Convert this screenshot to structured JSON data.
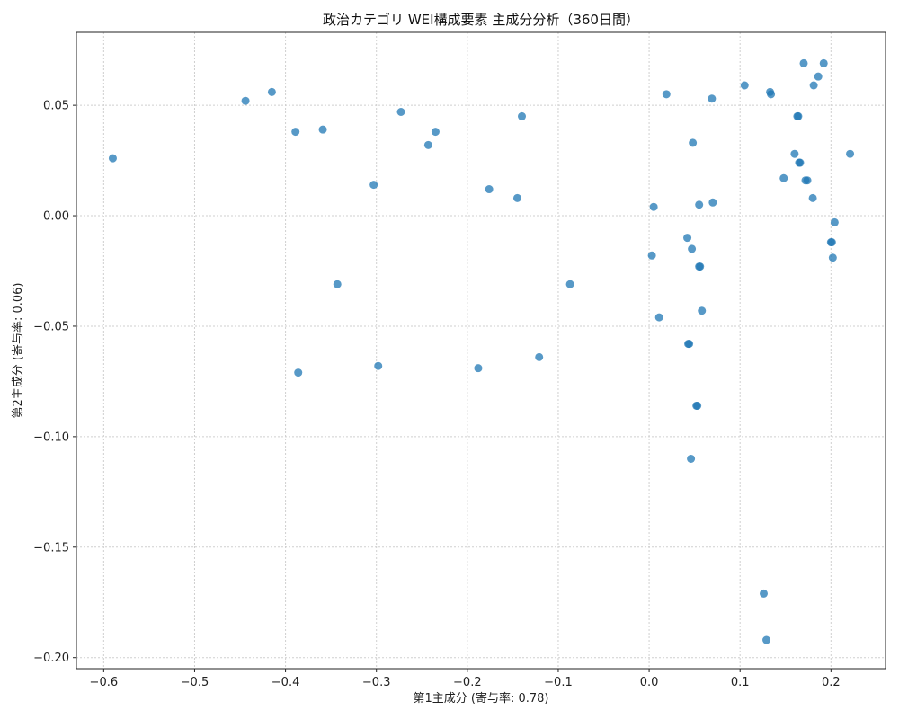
{
  "chart_data": {
    "type": "scatter",
    "title": "政治カテゴリ WEI構成要素 主成分分析（360日間）",
    "xlabel": "第1主成分 (寄与率: 0.78)",
    "ylabel": "第2主成分 (寄与率: 0.06)",
    "xlim": [
      -0.63,
      0.26
    ],
    "ylim": [
      -0.205,
      0.083
    ],
    "xticks": [
      -0.6,
      -0.5,
      -0.4,
      -0.3,
      -0.2,
      -0.1,
      0.0,
      0.1,
      0.2
    ],
    "xtick_labels": [
      "−0.6",
      "−0.5",
      "−0.4",
      "−0.3",
      "−0.2",
      "−0.1",
      "0.0",
      "0.1",
      "0.2"
    ],
    "yticks": [
      0.05,
      0.0,
      -0.05,
      -0.1,
      -0.15,
      -0.2
    ],
    "ytick_labels": [
      "0.05",
      "0.00",
      "−0.05",
      "−0.10",
      "−0.15",
      "−0.20"
    ],
    "grid": true,
    "point_color": "#1f77b4",
    "point_alpha": 0.75,
    "points": [
      {
        "x": -0.59,
        "y": 0.026
      },
      {
        "x": -0.444,
        "y": 0.052
      },
      {
        "x": -0.415,
        "y": 0.056
      },
      {
        "x": -0.389,
        "y": 0.038
      },
      {
        "x": -0.359,
        "y": 0.039
      },
      {
        "x": -0.343,
        "y": -0.031
      },
      {
        "x": -0.386,
        "y": -0.071
      },
      {
        "x": -0.303,
        "y": 0.014
      },
      {
        "x": -0.298,
        "y": -0.068
      },
      {
        "x": -0.273,
        "y": 0.047
      },
      {
        "x": -0.243,
        "y": 0.032
      },
      {
        "x": -0.235,
        "y": 0.038
      },
      {
        "x": -0.176,
        "y": 0.012
      },
      {
        "x": -0.188,
        "y": -0.069
      },
      {
        "x": -0.145,
        "y": 0.008
      },
      {
        "x": -0.14,
        "y": 0.045
      },
      {
        "x": -0.121,
        "y": -0.064
      },
      {
        "x": -0.087,
        "y": -0.031
      },
      {
        "x": 0.003,
        "y": -0.018
      },
      {
        "x": 0.005,
        "y": 0.004
      },
      {
        "x": 0.011,
        "y": -0.046
      },
      {
        "x": 0.019,
        "y": 0.055
      },
      {
        "x": 0.042,
        "y": -0.01
      },
      {
        "x": 0.044,
        "y": -0.058
      },
      {
        "x": 0.043,
        "y": -0.058
      },
      {
        "x": 0.046,
        "y": -0.11
      },
      {
        "x": 0.047,
        "y": -0.015
      },
      {
        "x": 0.048,
        "y": 0.033
      },
      {
        "x": 0.052,
        "y": -0.086
      },
      {
        "x": 0.053,
        "y": -0.086
      },
      {
        "x": 0.055,
        "y": 0.005
      },
      {
        "x": 0.055,
        "y": -0.023
      },
      {
        "x": 0.056,
        "y": -0.023
      },
      {
        "x": 0.058,
        "y": -0.043
      },
      {
        "x": 0.069,
        "y": 0.053
      },
      {
        "x": 0.07,
        "y": 0.006
      },
      {
        "x": 0.105,
        "y": 0.059
      },
      {
        "x": 0.126,
        "y": -0.171
      },
      {
        "x": 0.129,
        "y": -0.192
      },
      {
        "x": 0.133,
        "y": 0.056
      },
      {
        "x": 0.134,
        "y": 0.055
      },
      {
        "x": 0.148,
        "y": 0.017
      },
      {
        "x": 0.16,
        "y": 0.028
      },
      {
        "x": 0.163,
        "y": 0.045
      },
      {
        "x": 0.164,
        "y": 0.045
      },
      {
        "x": 0.165,
        "y": 0.024
      },
      {
        "x": 0.166,
        "y": 0.024
      },
      {
        "x": 0.17,
        "y": 0.069
      },
      {
        "x": 0.172,
        "y": 0.016
      },
      {
        "x": 0.174,
        "y": 0.016
      },
      {
        "x": 0.18,
        "y": 0.008
      },
      {
        "x": 0.181,
        "y": 0.059
      },
      {
        "x": 0.186,
        "y": 0.063
      },
      {
        "x": 0.192,
        "y": 0.069
      },
      {
        "x": 0.2,
        "y": -0.012
      },
      {
        "x": 0.201,
        "y": -0.012
      },
      {
        "x": 0.202,
        "y": -0.019
      },
      {
        "x": 0.204,
        "y": -0.003
      },
      {
        "x": 0.221,
        "y": 0.028
      }
    ]
  }
}
